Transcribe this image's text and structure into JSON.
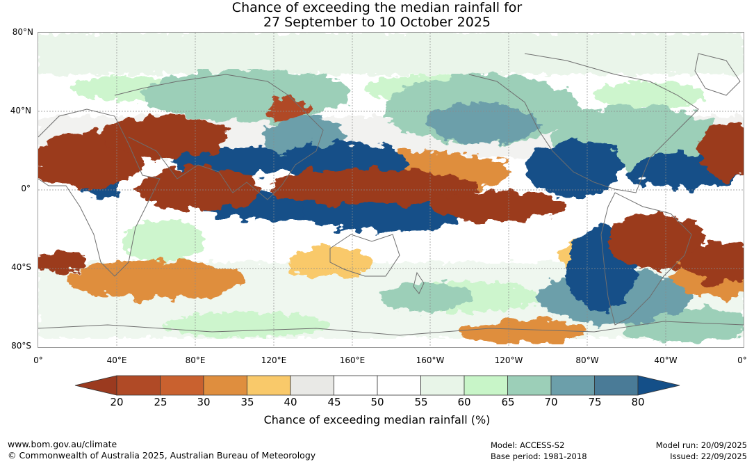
{
  "title": {
    "line1": "Chance of exceeding the median rainfall for",
    "line2": "27 September to 10 October 2025"
  },
  "map": {
    "lat_labels": [
      "80°N",
      "40°N",
      "0°",
      "40°S",
      "80°S"
    ],
    "lon_labels": [
      "0°",
      "40°E",
      "80°E",
      "120°E",
      "160°E",
      "160°W",
      "120°W",
      "80°W",
      "40°W",
      "0°"
    ]
  },
  "colorbar": {
    "labels": [
      "20",
      "25",
      "30",
      "35",
      "40",
      "45",
      "50",
      "55",
      "60",
      "65",
      "70",
      "75",
      "80"
    ],
    "colors": [
      "#9b3a1f",
      "#b04a26",
      "#c9612f",
      "#df8e3e",
      "#f9c96a",
      "#e9e9e6",
      "#ffffff",
      "#ffffff",
      "#e8f5e8",
      "#c8f5c8",
      "#9ccfb8",
      "#6c9faa",
      "#4a7b97",
      "#144f88"
    ],
    "title": "Chance of exceeding median rainfall (%)"
  },
  "footer": {
    "website": "www.bom.gov.au/climate",
    "copyright": "© Commonwealth of Australia 2025, Australian Bureau of Meteorology",
    "model": "Model: ACCESS-S2",
    "base_period": "Base period: 1981-2018",
    "model_run": "Model run: 20/09/2025",
    "issued": "Issued: 22/09/2025"
  }
}
